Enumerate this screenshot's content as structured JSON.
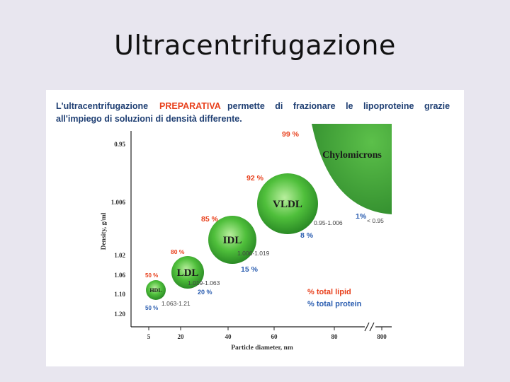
{
  "slide": {
    "title": "Ultracentrifugazione",
    "intro": {
      "part1": "L'ultracentrifugazione",
      "highlight": "PREPARATIVA",
      "part2": "permette di frazionare le lipoproteine grazie",
      "line2": "all'impiego di soluzioni di densità differente."
    }
  },
  "colors": {
    "header_text": "#1f3f73",
    "highlight": "#e8401c",
    "lipid": "#e8401c",
    "protein": "#2a5db0",
    "bubble_green": "#3fa535",
    "chylo_green": "#3f9b3a"
  },
  "chart_data": {
    "type": "scatter",
    "xlabel": "Particle diameter, nm",
    "ylabel": "Density, g/ml",
    "x_ticks": [
      "5",
      "20",
      "40",
      "60",
      "80",
      "800"
    ],
    "y_ticks": [
      "0.95",
      "1.006",
      "1.02",
      "1.06",
      "1.10",
      "1.20"
    ],
    "particles": [
      {
        "name": "HDL",
        "density_range": "1.063-1.21",
        "lipid": "50 %",
        "protein": "50 %"
      },
      {
        "name": "LDL",
        "density_range": "1.019-1.063",
        "lipid": "80 %",
        "protein": "20 %"
      },
      {
        "name": "IDL",
        "density_range": "1.006-1.019",
        "lipid": "85 %",
        "protein": "15 %"
      },
      {
        "name": "VLDL",
        "density_range": "0.95-1.006",
        "lipid": "92 %",
        "protein": "8 %"
      },
      {
        "name": "Chylomicrons",
        "density_range": "< 0.95",
        "lipid": "99 %",
        "protein": "1%"
      }
    ],
    "legend": {
      "lipid": "% total lipid",
      "protein": "% total protein"
    }
  }
}
